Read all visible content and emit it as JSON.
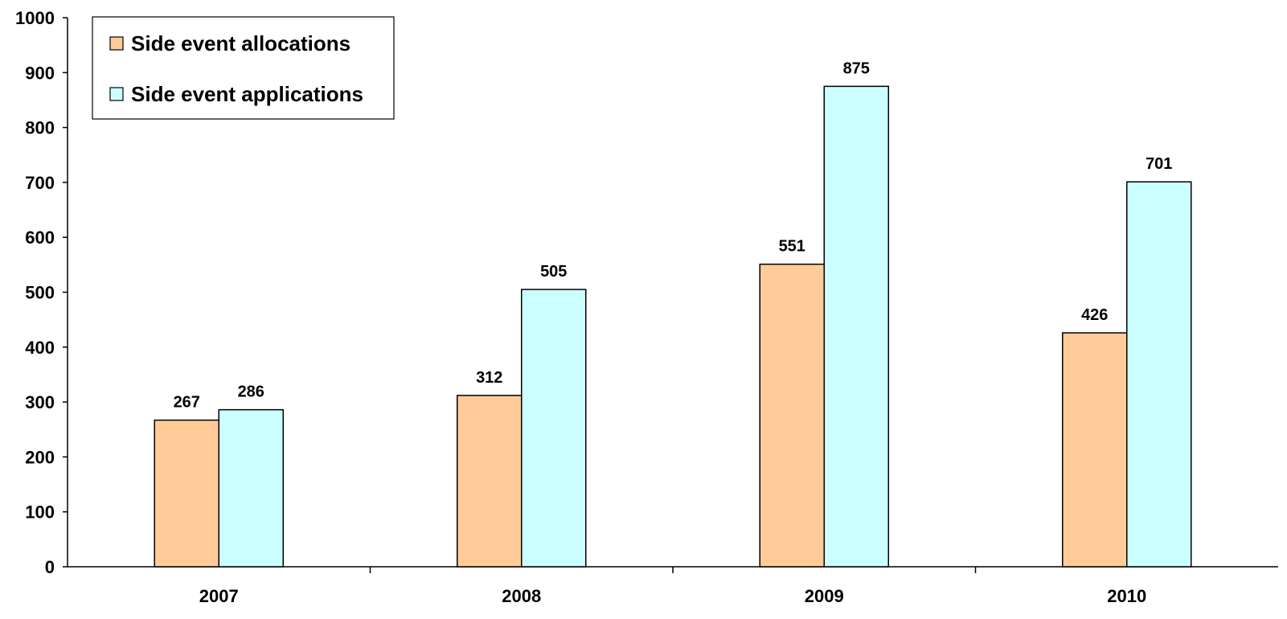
{
  "chart_data": {
    "type": "bar",
    "title": "",
    "xlabel": "",
    "ylabel": "",
    "categories": [
      "2007",
      "2008",
      "2009",
      "2010"
    ],
    "series": [
      {
        "name": "Side event allocations",
        "color": "#FFCC99",
        "values": [
          267,
          312,
          551,
          426
        ]
      },
      {
        "name": "Side event applications",
        "color": "#CCFFFF",
        "values": [
          286,
          505,
          875,
          701
        ]
      }
    ],
    "ylim": [
      0,
      1000
    ],
    "yticks": [
      "0",
      "100",
      "200",
      "300",
      "400",
      "500",
      "600",
      "700",
      "800",
      "900",
      "1000"
    ],
    "grid": false,
    "legend_position": "top-left",
    "data_labels": true
  }
}
